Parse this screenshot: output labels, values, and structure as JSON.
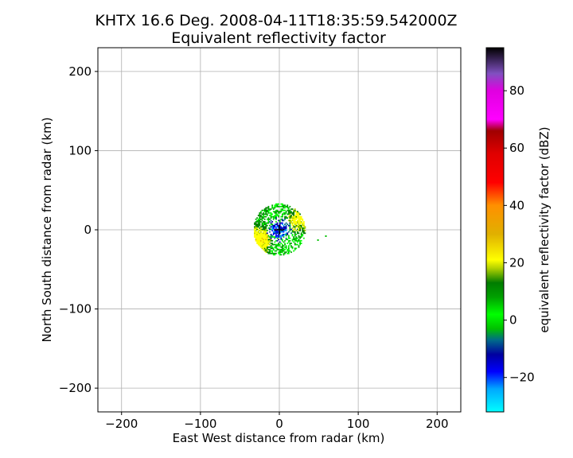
{
  "chart_data": {
    "type": "heatmap",
    "title": "KHTX 16.6 Deg. 2008-04-11T18:35:59.542000Z",
    "subtitle": "Equivalent reflectivity factor",
    "xlabel": "East West distance from radar (km)",
    "ylabel": "North South distance from radar (km)",
    "xlim": [
      -230,
      230
    ],
    "ylim": [
      -230,
      230
    ],
    "x_ticks": [
      -200,
      -100,
      0,
      100,
      200
    ],
    "y_ticks": [
      -200,
      -100,
      0,
      100,
      200
    ],
    "x_tick_labels": [
      "−200",
      "−100",
      "0",
      "100",
      "200"
    ],
    "y_tick_labels": [
      "−200",
      "−100",
      "0",
      "100",
      "200"
    ],
    "grid": true,
    "radar_marker": {
      "x": 0,
      "y": 0,
      "symbol": "+"
    },
    "echo_region": {
      "center": [
        0,
        0
      ],
      "inner_radius_km": 10,
      "outer_radius_km": 33,
      "stray_echo": [
        [
          48,
          -12
        ],
        [
          58,
          -7
        ]
      ]
    },
    "colorbar": {
      "label": "equivalent reflectivity factor (dBZ)",
      "range": [
        -32,
        95
      ],
      "ticks": [
        -20,
        0,
        20,
        40,
        60,
        80
      ],
      "tick_labels": [
        "−20",
        "0",
        "20",
        "40",
        "60",
        "80"
      ],
      "stops": [
        {
          "value": -32,
          "color": "#00ffff"
        },
        {
          "value": -24,
          "color": "#00a8ff"
        },
        {
          "value": -18,
          "color": "#0000ff"
        },
        {
          "value": -12,
          "color": "#0000a0"
        },
        {
          "value": -7,
          "color": "#006a8a"
        },
        {
          "value": -3,
          "color": "#00c000"
        },
        {
          "value": 2,
          "color": "#00ff00"
        },
        {
          "value": 8,
          "color": "#00a000"
        },
        {
          "value": 13,
          "color": "#007c00"
        },
        {
          "value": 18,
          "color": "#b0d000"
        },
        {
          "value": 21,
          "color": "#ffff00"
        },
        {
          "value": 30,
          "color": "#e0b000"
        },
        {
          "value": 40,
          "color": "#ff9000"
        },
        {
          "value": 48,
          "color": "#ff0000"
        },
        {
          "value": 58,
          "color": "#e00000"
        },
        {
          "value": 66,
          "color": "#a00000"
        },
        {
          "value": 70,
          "color": "#ff00ff"
        },
        {
          "value": 80,
          "color": "#e000e0"
        },
        {
          "value": 86,
          "color": "#8050c0"
        },
        {
          "value": 95,
          "color": "#000000"
        }
      ]
    }
  }
}
